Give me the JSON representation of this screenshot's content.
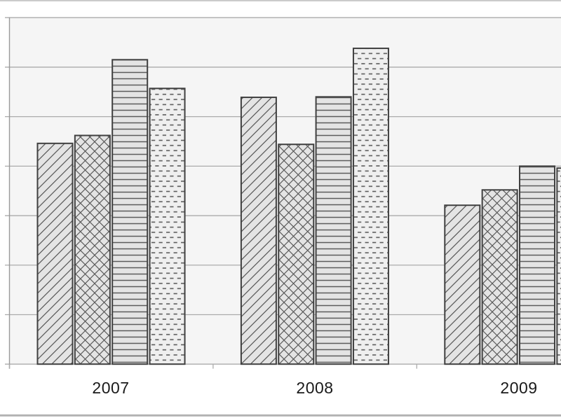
{
  "chart_data": {
    "type": "bar",
    "title": "",
    "xlabel": "",
    "ylabel": "",
    "categories": [
      "2007",
      "2008",
      "2009"
    ],
    "series": [
      {
        "name": "diagonal-hatch",
        "pattern": "diagonal",
        "values": [
          4.46,
          5.39,
          3.21
        ]
      },
      {
        "name": "crosshatch",
        "pattern": "crosshatch",
        "values": [
          4.62,
          4.44,
          3.52
        ]
      },
      {
        "name": "horizontal-lines",
        "pattern": "horizontal-lines",
        "values": [
          6.15,
          5.4,
          4.0
        ]
      },
      {
        "name": "dashed-horizontal",
        "pattern": "dashed-rows",
        "values": [
          5.57,
          6.38,
          3.96
        ]
      }
    ],
    "ylim": [
      0,
      7
    ],
    "gridline_step": 1,
    "grid": "horizontal gridlines on",
    "legend_visible": false,
    "y_tick_labels_visible": false,
    "value_note": "y-axis numeric labels are cropped out of view; values measured in gridline intervals above the baseline; rightmost 2009 bar is clipped by the image edge"
  },
  "colors": {
    "page_bg": "#ffffff",
    "plot_bg": "#f5f5f5",
    "gridline": "#ababab",
    "axis_line": "#9a9a9a",
    "bar_fill": "#e4e4e4",
    "dashed_bar_fill": "#efefef",
    "pattern_line": "#5c5c5c",
    "bar_border": "#404040",
    "label_text": "#1a1a1a",
    "top_border": "#cbcbcb",
    "bottom_border": "#b5b5b5"
  }
}
